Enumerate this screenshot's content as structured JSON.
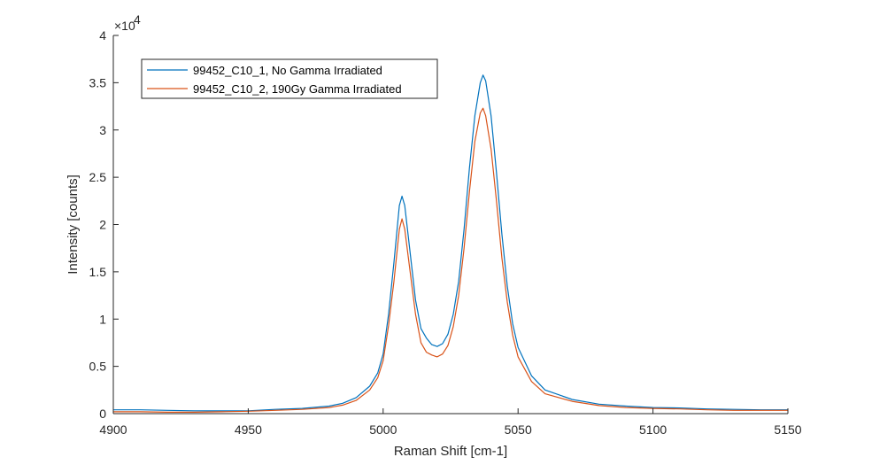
{
  "chart_data": {
    "type": "line",
    "xlabel": "Raman Shift [cm-1]",
    "ylabel": "Intensity [counts]",
    "xlim": [
      4900,
      5150
    ],
    "ylim": [
      0,
      40000
    ],
    "x_ticks": [
      4900,
      4950,
      5000,
      5050,
      5100,
      5150
    ],
    "y_ticks": [
      0,
      5000,
      10000,
      15000,
      20000,
      25000,
      30000,
      35000,
      40000
    ],
    "y_tick_labels": [
      "0",
      "0.5",
      "1",
      "1.5",
      "2",
      "2.5",
      "3",
      "3.5",
      "4"
    ],
    "y_exponent_base": "×10",
    "y_exponent_power": "4",
    "legend_position": "top-left",
    "grid": false,
    "x": [
      4900,
      4910,
      4920,
      4930,
      4940,
      4950,
      4960,
      4970,
      4980,
      4985,
      4990,
      4995,
      4998,
      5000,
      5002,
      5004,
      5006,
      5007,
      5008,
      5010,
      5012,
      5014,
      5016,
      5018,
      5020,
      5022,
      5024,
      5026,
      5028,
      5030,
      5032,
      5034,
      5036,
      5037,
      5038,
      5040,
      5042,
      5044,
      5046,
      5048,
      5050,
      5055,
      5060,
      5070,
      5080,
      5090,
      5100,
      5110,
      5120,
      5130,
      5140,
      5150
    ],
    "series": [
      {
        "name": "99452_C10_1, No Gamma Irradiated",
        "color": "#0072BD",
        "values": [
          400,
          400,
          350,
          300,
          300,
          300,
          450,
          550,
          800,
          1100,
          1700,
          2900,
          4300,
          6300,
          10500,
          16000,
          22000,
          23000,
          22000,
          17000,
          12000,
          9000,
          8000,
          7300,
          7100,
          7400,
          8400,
          10500,
          14000,
          19500,
          26000,
          31500,
          35000,
          35800,
          35200,
          31500,
          25500,
          19000,
          13500,
          9500,
          7000,
          4000,
          2500,
          1500,
          1000,
          800,
          650,
          600,
          500,
          450,
          400,
          400
        ]
      },
      {
        "name": "99452_C10_2, 190Gy Gamma Irradiated",
        "color": "#D95319",
        "values": [
          200,
          200,
          150,
          150,
          200,
          250,
          350,
          450,
          650,
          900,
          1400,
          2500,
          3800,
          5600,
          9300,
          14000,
          19500,
          20600,
          19500,
          15000,
          10500,
          7500,
          6500,
          6200,
          6000,
          6300,
          7200,
          9200,
          12500,
          17500,
          23500,
          28800,
          31800,
          32300,
          31500,
          28000,
          22500,
          16500,
          11800,
          8300,
          6000,
          3400,
          2100,
          1300,
          850,
          650,
          550,
          500,
          400,
          350,
          350,
          350
        ]
      }
    ]
  }
}
